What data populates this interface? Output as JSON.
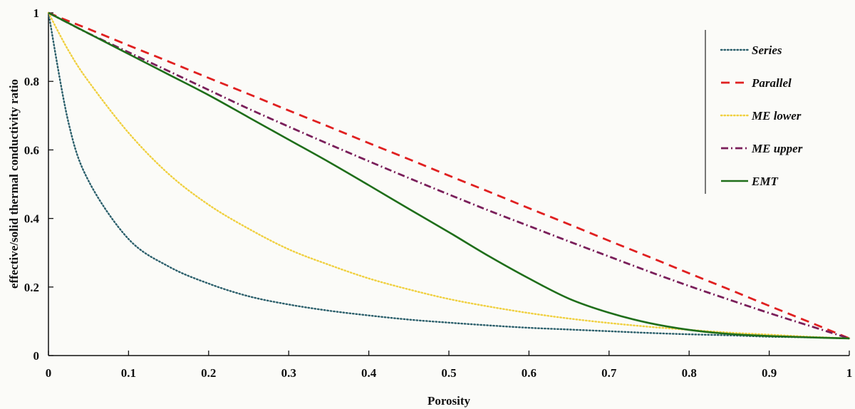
{
  "chart_data": {
    "type": "line",
    "xlabel": "Porosity",
    "ylabel": "effective/solid thermal conductivity ratio",
    "xlim": [
      0,
      1
    ],
    "ylim": [
      0,
      1
    ],
    "x_ticks": [
      "0",
      "0.1",
      "0.2",
      "0.3",
      "0.4",
      "0.5",
      "0.6",
      "0.7",
      "0.8",
      "0.9",
      "1"
    ],
    "y_ticks": [
      "0",
      "0.2",
      "0.4",
      "0.6",
      "0.8",
      "1"
    ],
    "grid": false,
    "legend_position": "top-right",
    "x": [
      0,
      0.025,
      0.05,
      0.1,
      0.15,
      0.2,
      0.25,
      0.3,
      0.35,
      0.4,
      0.45,
      0.5,
      0.55,
      0.6,
      0.65,
      0.7,
      0.75,
      0.8,
      0.85,
      0.9,
      0.95,
      1.0
    ],
    "series": [
      {
        "name": "Series",
        "color": "#2b5f6b",
        "style": "dotted",
        "values": [
          1.0,
          0.68,
          0.51,
          0.34,
          0.26,
          0.21,
          0.173,
          0.149,
          0.131,
          0.117,
          0.105,
          0.096,
          0.088,
          0.081,
          0.076,
          0.071,
          0.066,
          0.062,
          0.059,
          0.055,
          0.053,
          0.05
        ]
      },
      {
        "name": "Parallel",
        "color": "#e02020",
        "style": "dashed",
        "values": [
          1.0,
          0.976,
          0.953,
          0.905,
          0.858,
          0.81,
          0.763,
          0.715,
          0.668,
          0.62,
          0.573,
          0.525,
          0.478,
          0.43,
          0.383,
          0.335,
          0.288,
          0.24,
          0.193,
          0.145,
          0.098,
          0.05
        ]
      },
      {
        "name": "ME lower",
        "color": "#f0d040",
        "style": "dotted",
        "values": [
          1.0,
          0.89,
          0.8,
          0.65,
          0.53,
          0.44,
          0.37,
          0.31,
          0.265,
          0.225,
          0.193,
          0.165,
          0.143,
          0.124,
          0.108,
          0.095,
          0.084,
          0.075,
          0.067,
          0.061,
          0.055,
          0.05
        ]
      },
      {
        "name": "ME upper",
        "color": "#7a1f5a",
        "style": "dashdot",
        "values": [
          1.0,
          0.97,
          0.94,
          0.885,
          0.83,
          0.775,
          0.72,
          0.668,
          0.617,
          0.567,
          0.518,
          0.47,
          0.423,
          0.378,
          0.333,
          0.289,
          0.245,
          0.203,
          0.163,
          0.124,
          0.087,
          0.05
        ]
      },
      {
        "name": "EMT",
        "color": "#1f6e1a",
        "style": "solid",
        "values": [
          1.0,
          0.97,
          0.94,
          0.88,
          0.82,
          0.76,
          0.695,
          0.63,
          0.565,
          0.497,
          0.428,
          0.36,
          0.29,
          0.225,
          0.166,
          0.125,
          0.095,
          0.075,
          0.063,
          0.057,
          0.053,
          0.05
        ]
      }
    ]
  }
}
